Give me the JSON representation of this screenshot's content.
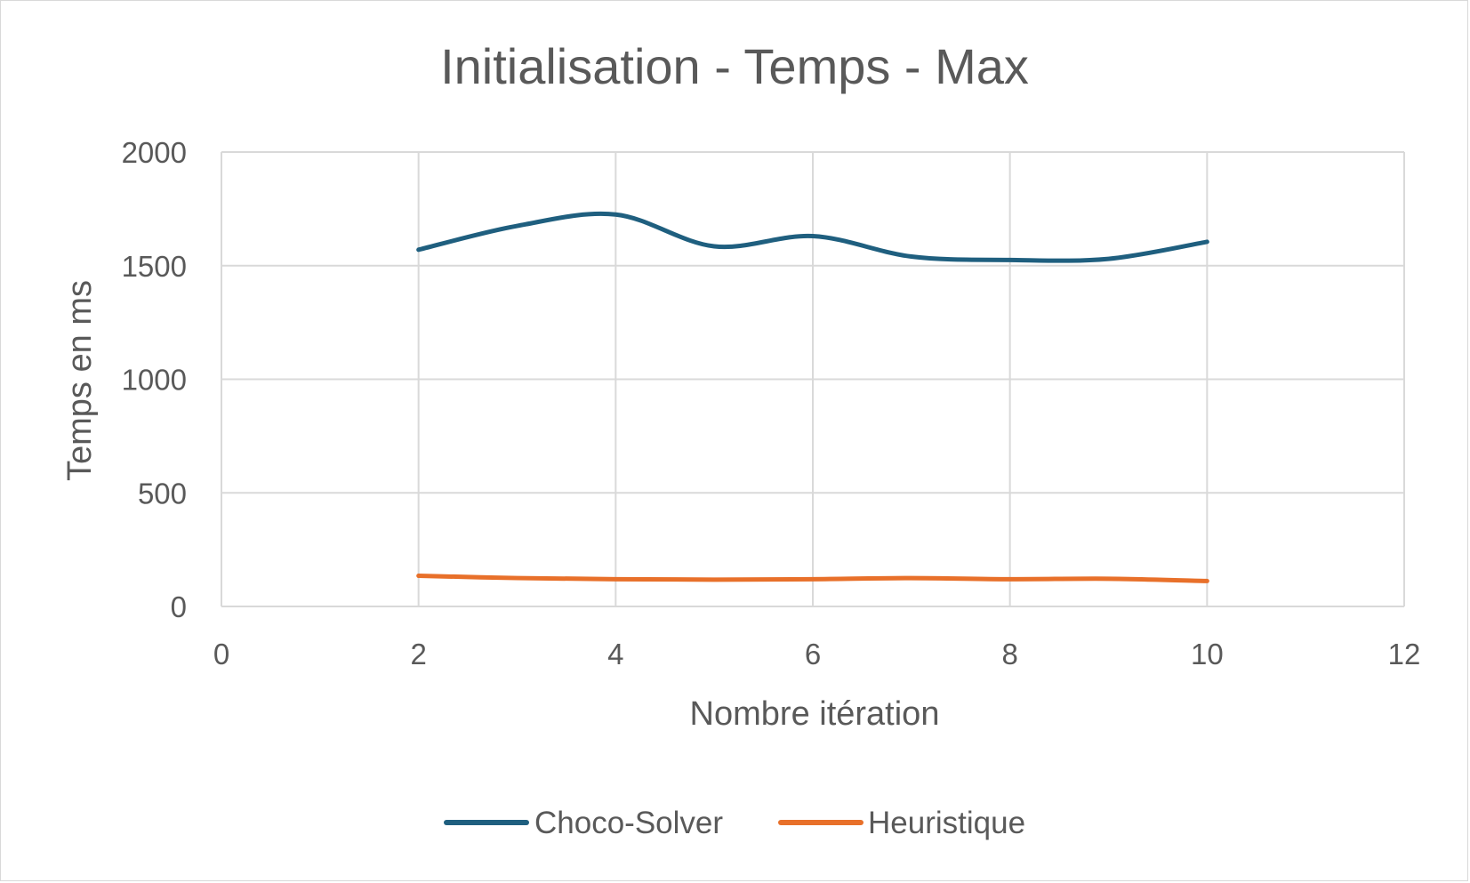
{
  "chart_data": {
    "type": "line",
    "title": "Initialisation - Temps - Max",
    "xlabel": "Nombre itération",
    "ylabel": "Temps en ms",
    "xlim": [
      0,
      12
    ],
    "ylim": [
      0,
      2000
    ],
    "x_ticks": [
      "0",
      "2",
      "4",
      "6",
      "8",
      "10",
      "12"
    ],
    "y_ticks": [
      "0",
      "500",
      "1000",
      "1500",
      "2000"
    ],
    "grid": true,
    "smooth": true,
    "legend_position": "bottom",
    "series": [
      {
        "name": "Choco-Solver",
        "color": "#1f5f7f",
        "x": [
          2,
          3,
          4,
          5,
          6,
          7,
          8,
          9,
          10
        ],
        "y": [
          1570,
          1675,
          1725,
          1585,
          1630,
          1540,
          1525,
          1530,
          1605
        ]
      },
      {
        "name": "Heuristique",
        "color": "#e8702a",
        "x": [
          2,
          3,
          4,
          5,
          6,
          7,
          8,
          9,
          10
        ],
        "y": [
          135,
          125,
          120,
          118,
          120,
          125,
          120,
          122,
          112
        ]
      }
    ]
  }
}
